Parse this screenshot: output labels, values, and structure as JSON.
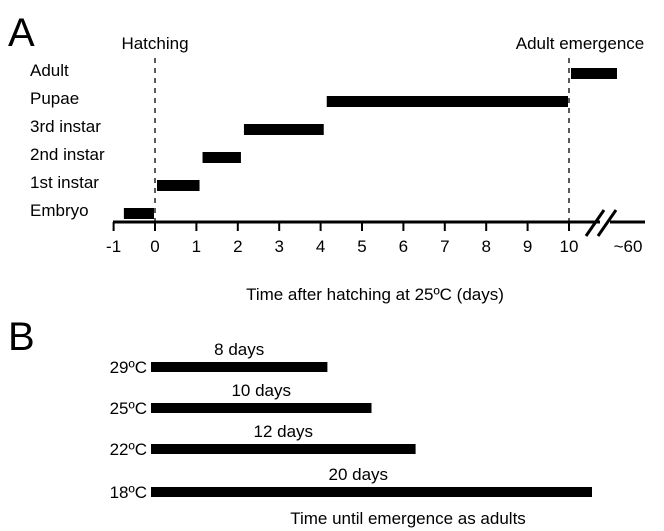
{
  "chart_data": [
    {
      "panel": "A",
      "type": "bar",
      "orientation": "horizontal-range",
      "xlabel": "Time after hatching at 25ºC (days)",
      "x_ticks": [
        "-1",
        "0",
        "1",
        "2",
        "3",
        "4",
        "5",
        "6",
        "7",
        "8",
        "9",
        "10",
        "~60"
      ],
      "xlim": [
        -1,
        10
      ],
      "axis_break_after": 10,
      "grid": false,
      "categories": [
        "Adult",
        "Pupae",
        "3rd instar",
        "2nd instar",
        "1st instar",
        "Embryo"
      ],
      "ranges": [
        {
          "stage": "Adult",
          "start": 10,
          "end": "~60"
        },
        {
          "stage": "Pupae",
          "start": 4.1,
          "end": 10
        },
        {
          "stage": "3rd instar",
          "start": 2.1,
          "end": 4.1
        },
        {
          "stage": "2nd instar",
          "start": 1.1,
          "end": 2.1
        },
        {
          "stage": "1st instar",
          "start": 0,
          "end": 1.1
        },
        {
          "stage": "Embryo",
          "start": -0.8,
          "end": 0
        }
      ],
      "markers": [
        {
          "label": "Hatching",
          "x": 0
        },
        {
          "label": "Adult emergence",
          "x": 10
        }
      ]
    },
    {
      "panel": "B",
      "type": "bar",
      "orientation": "horizontal",
      "xlabel": "Time until emergence as adults",
      "categories": [
        "29ºC",
        "25ºC",
        "22ºC",
        "18ºC"
      ],
      "values": [
        8,
        10,
        12,
        20
      ],
      "value_labels": [
        "8 days",
        "10 days",
        "12 days",
        "20 days"
      ]
    }
  ]
}
